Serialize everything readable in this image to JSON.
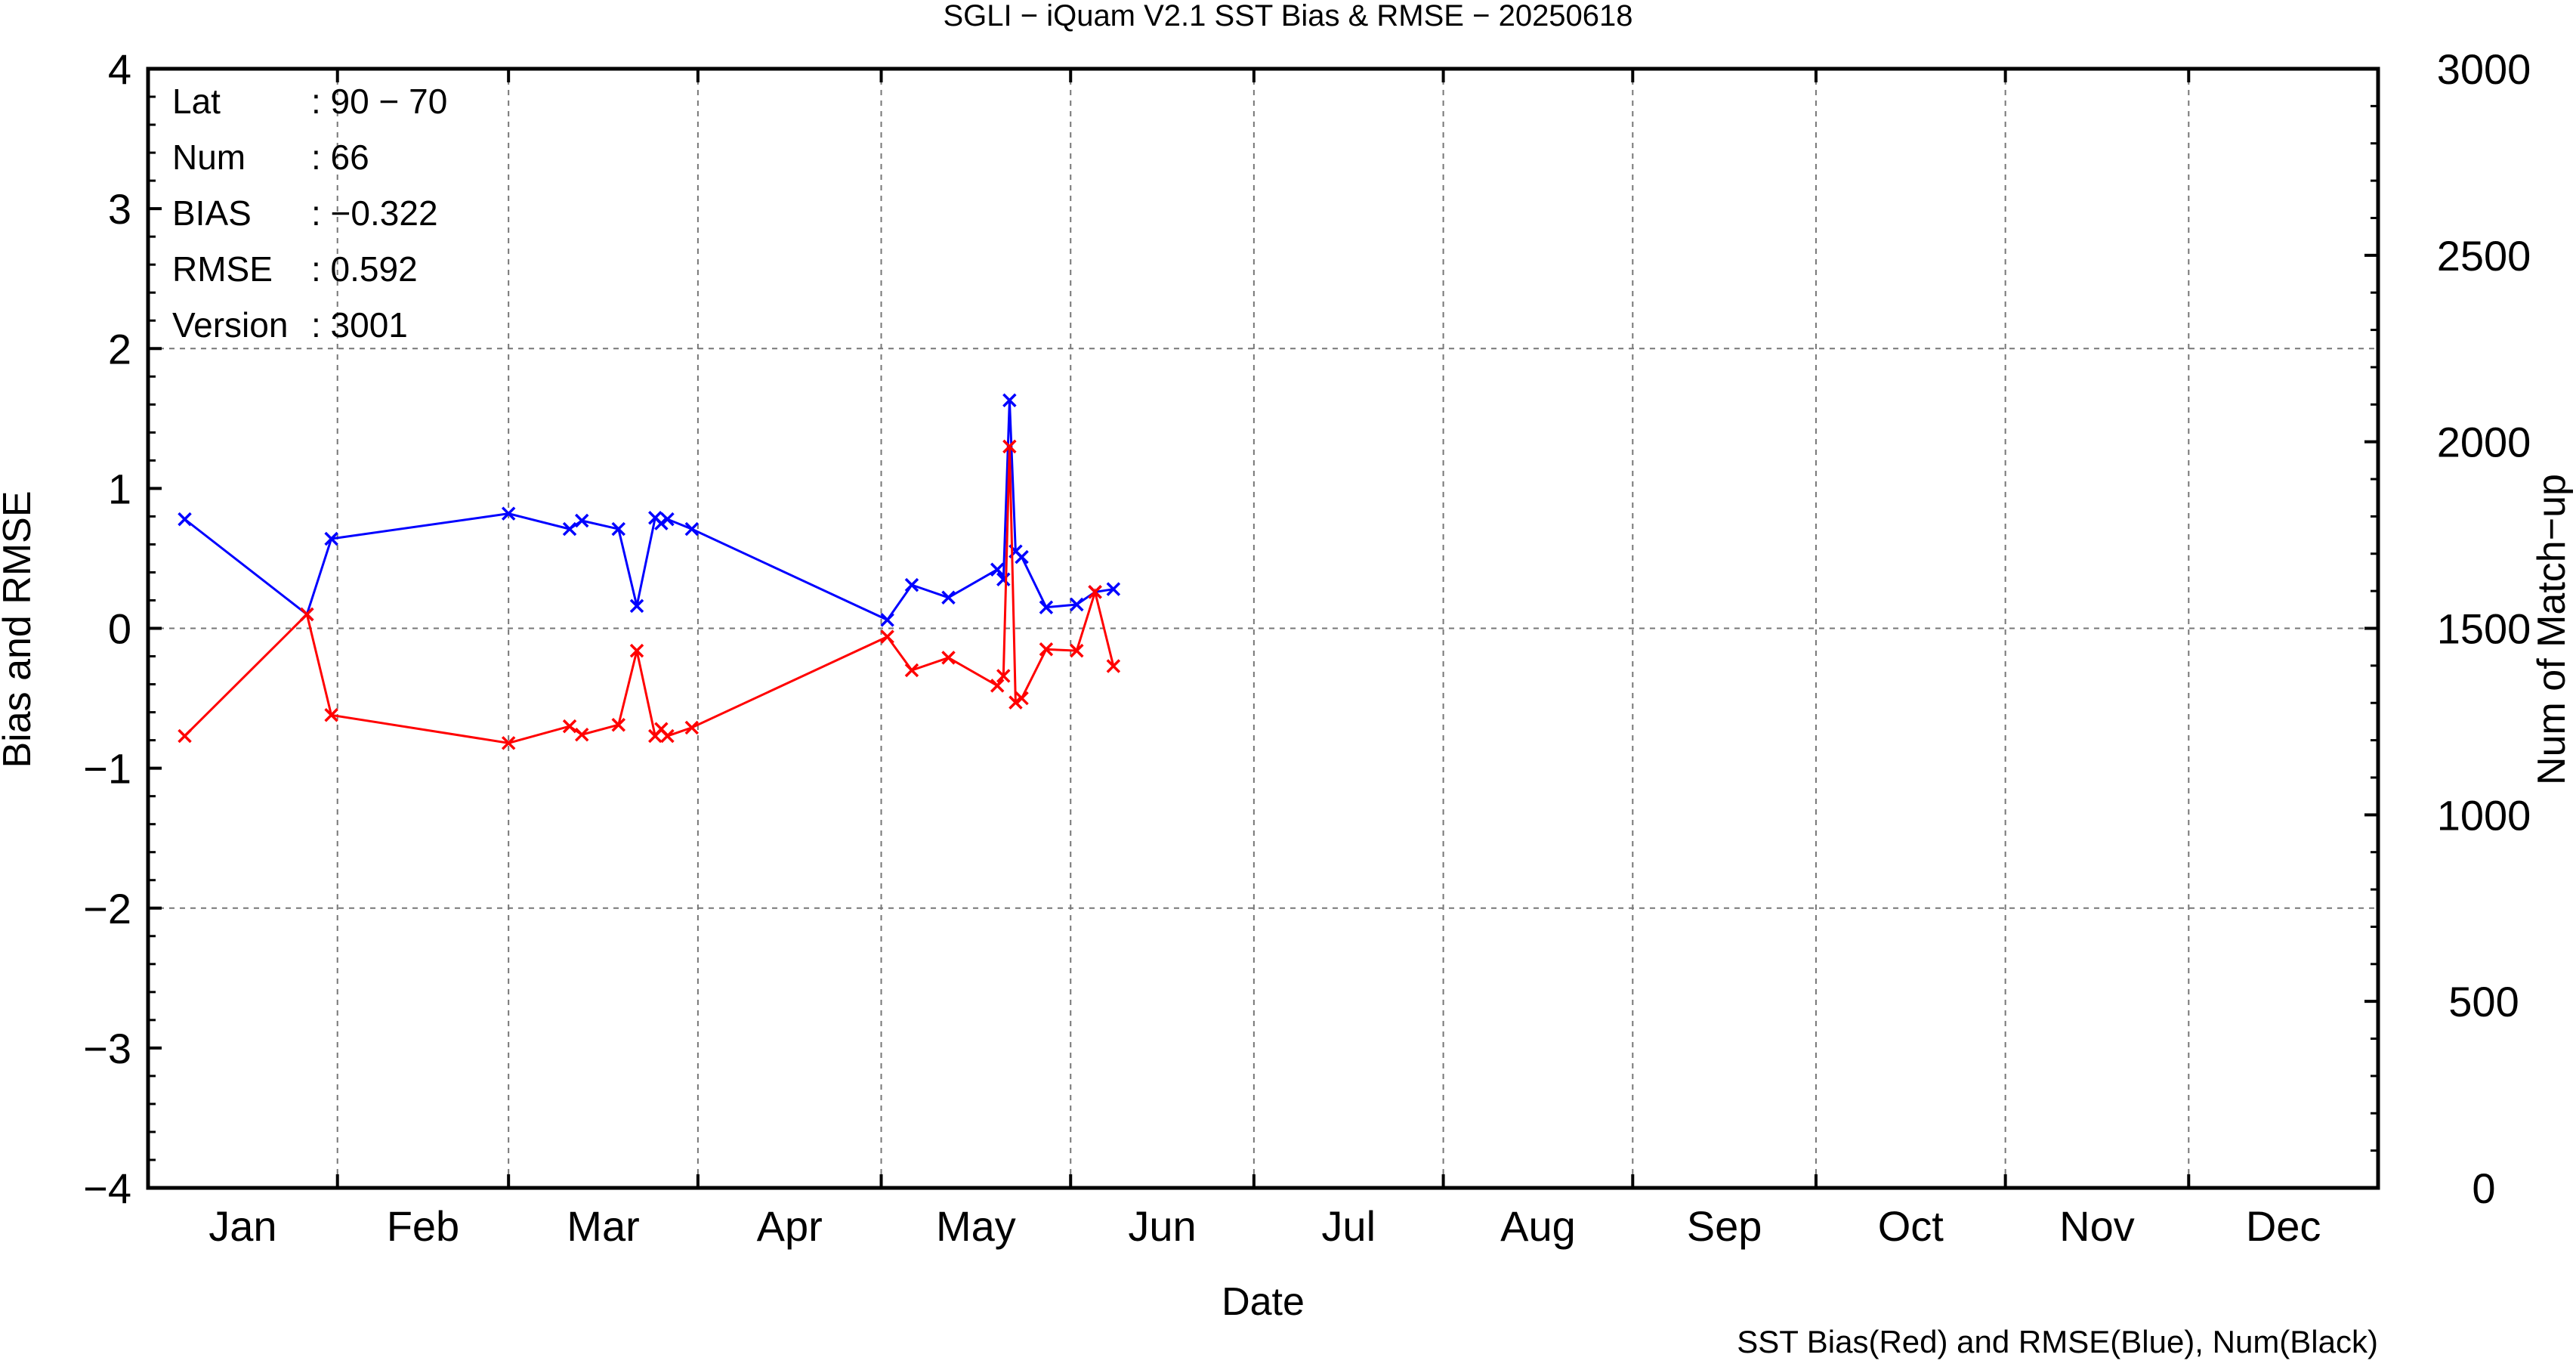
{
  "chart_data": {
    "type": "line",
    "title": "SGLI − iQuam V2.1 SST Bias & RMSE  − 20250618",
    "xlabel": "Date",
    "ylabel": "Bias and RMSE",
    "y2label": "Num of Match−up",
    "footer": "SST Bias(Red) and RMSE(Blue), Num(Black)",
    "xlim": [
      "2025-01-01",
      "2025-12-31"
    ],
    "ylim": [
      -4,
      4
    ],
    "y2lim": [
      0,
      3000
    ],
    "y_ticks": [
      "4",
      "3",
      "2",
      "1",
      "0",
      "−1",
      "−2",
      "−3",
      "−4"
    ],
    "y2_ticks": [
      "3000",
      "2500",
      "2000",
      "1500",
      "1000",
      "500",
      "0"
    ],
    "months": [
      "Jan",
      "Feb",
      "Mar",
      "Apr",
      "May",
      "Jun",
      "Jul",
      "Aug",
      "Sep",
      "Oct",
      "Nov",
      "Dec"
    ],
    "grid": true,
    "info_box": [
      {
        "label": "Lat",
        "value": ": 90 − 70"
      },
      {
        "label": "Num",
        "value": ": 66"
      },
      {
        "label": "BIAS",
        "value": ": −0.322"
      },
      {
        "label": "RMSE",
        "value": ": 0.592"
      },
      {
        "label": "Version",
        "value": ": 3001"
      }
    ],
    "series": [
      {
        "name": "RMSE",
        "color": "#0000ff",
        "x": [
          "2025-01-07",
          "2025-01-27",
          "2025-01-31",
          "2025-03-01",
          "2025-03-11",
          "2025-03-13",
          "2025-03-19",
          "2025-03-22",
          "2025-03-25",
          "2025-03-26",
          "2025-03-27",
          "2025-03-31",
          "2025-05-02",
          "2025-05-06",
          "2025-05-12",
          "2025-05-20",
          "2025-05-21",
          "2025-05-22",
          "2025-05-23",
          "2025-05-24",
          "2025-05-28",
          "2025-06-02",
          "2025-06-05",
          "2025-06-08"
        ],
        "y": [
          0.78,
          0.1,
          0.64,
          0.82,
          0.71,
          0.77,
          0.71,
          0.16,
          0.79,
          0.75,
          0.78,
          0.71,
          0.06,
          0.31,
          0.22,
          0.42,
          0.35,
          1.63,
          0.55,
          0.51,
          0.15,
          0.17,
          0.26,
          0.28
        ]
      },
      {
        "name": "Bias",
        "color": "#ff0000",
        "x": [
          "2025-01-07",
          "2025-01-27",
          "2025-01-31",
          "2025-03-01",
          "2025-03-11",
          "2025-03-13",
          "2025-03-19",
          "2025-03-22",
          "2025-03-25",
          "2025-03-26",
          "2025-03-27",
          "2025-03-31",
          "2025-05-02",
          "2025-05-06",
          "2025-05-12",
          "2025-05-20",
          "2025-05-21",
          "2025-05-22",
          "2025-05-23",
          "2025-05-24",
          "2025-05-28",
          "2025-06-02",
          "2025-06-05",
          "2025-06-08"
        ],
        "y": [
          -0.77,
          0.1,
          -0.62,
          -0.82,
          -0.7,
          -0.76,
          -0.69,
          -0.16,
          -0.77,
          -0.72,
          -0.77,
          -0.71,
          -0.06,
          -0.3,
          -0.21,
          -0.41,
          -0.34,
          1.3,
          -0.53,
          -0.5,
          -0.15,
          -0.16,
          0.26,
          -0.27
        ]
      }
    ]
  }
}
